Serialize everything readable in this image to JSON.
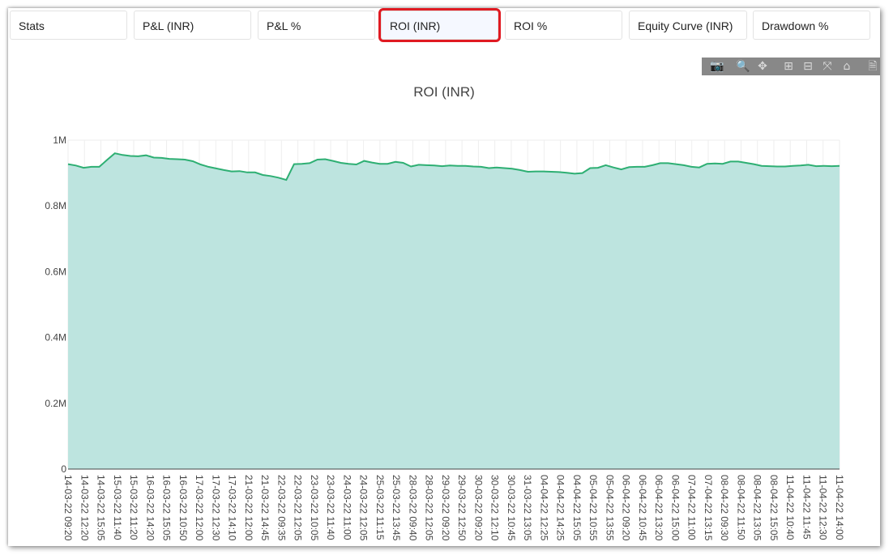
{
  "tabs": [
    {
      "label": "Stats",
      "active": false
    },
    {
      "label": "P&L (INR)",
      "active": false
    },
    {
      "label": "P&L %",
      "active": false
    },
    {
      "label": "ROI (INR)",
      "active": true
    },
    {
      "label": "ROI %",
      "active": false
    },
    {
      "label": "Equity Curve (INR)",
      "active": false
    },
    {
      "label": "Drawdown %",
      "active": false
    }
  ],
  "modebar": [
    {
      "icon": "camera-icon",
      "glyph": "📷"
    },
    {
      "icon": "zoom-icon",
      "glyph": "🔍"
    },
    {
      "icon": "pan-icon",
      "glyph": "✥"
    },
    {
      "icon": "zoom-in-icon",
      "glyph": "⊞"
    },
    {
      "icon": "zoom-out-icon",
      "glyph": "⊟"
    },
    {
      "icon": "autoscale-icon",
      "glyph": "⤧"
    },
    {
      "icon": "home-icon",
      "glyph": "⌂"
    },
    {
      "icon": "download-icon",
      "glyph": "🗎"
    }
  ],
  "chart_data": {
    "type": "area",
    "title": "ROI (INR)",
    "xlabel": "",
    "ylabel": "",
    "ylim": [
      0,
      1000000
    ],
    "yticks": [
      0,
      200000,
      400000,
      600000,
      800000,
      1000000
    ],
    "ytick_labels": [
      "0",
      "0.2M",
      "0.4M",
      "0.6M",
      "0.8M",
      "1M"
    ],
    "x_tick_labels": [
      "14-03-22 09:20",
      "14-03-22 12:20",
      "14-03-22 15:05",
      "15-03-22 11:40",
      "15-03-22 11:20",
      "16-03-22 14:20",
      "16-03-22 15:05",
      "16-03-22 10:50",
      "17-03-22 12:00",
      "17-03-22 12:30",
      "17-03-22 14:10",
      "21-03-22 12:00",
      "21-03-22 14:45",
      "22-03-22 09:35",
      "22-03-22 12:05",
      "23-03-22 10:05",
      "23-03-22 11:40",
      "24-03-22 11:00",
      "24-03-22 12:05",
      "25-03-22 11:15",
      "25-03-22 13:45",
      "28-03-22 09:40",
      "28-03-22 12:05",
      "29-03-22 09:20",
      "29-03-22 12:50",
      "30-03-22 09:20",
      "30-03-22 12:10",
      "30-03-22 10:45",
      "31-03-22 13:05",
      "04-04-22 12:25",
      "04-04-22 14:25",
      "04-04-22 15:05",
      "05-04-22 10:55",
      "05-04-22 13:55",
      "06-04-22 09:20",
      "06-04-22 10:45",
      "06-04-22 13:20",
      "06-04-22 15:00",
      "07-04-22 11:00",
      "07-04-22 13:15",
      "08-04-22 09:30",
      "08-04-22 11:50",
      "08-04-22 13:05",
      "08-04-22 15:05",
      "11-04-22 10:40",
      "11-04-22 11:45",
      "11-04-22 12:30",
      "11-04-22 14:00"
    ],
    "series": [
      {
        "values": [
          927000,
          923000,
          916000,
          919000,
          919000,
          940000,
          960000,
          955000,
          952000,
          951000,
          954000,
          947000,
          946000,
          943000,
          942000,
          941000,
          936000,
          926000,
          919000,
          914000,
          909000,
          905000,
          906000,
          902000,
          902000,
          894000,
          891000,
          886000,
          879000,
          927000,
          928000,
          930000,
          941000,
          942000,
          937000,
          931000,
          928000,
          926000,
          937000,
          932000,
          928000,
          928000,
          934000,
          931000,
          920000,
          925000,
          924000,
          923000,
          921000,
          923000,
          922000,
          922000,
          920000,
          919000,
          915000,
          917000,
          915000,
          913000,
          909000,
          904000,
          905000,
          905000,
          904000,
          903000,
          901000,
          898000,
          900000,
          915000,
          916000,
          924000,
          917000,
          911000,
          918000,
          919000,
          919000,
          924000,
          930000,
          930000,
          927000,
          924000,
          919000,
          917000,
          928000,
          929000,
          928000,
          935000,
          935000,
          931000,
          927000,
          922000,
          921000,
          920000,
          920000,
          922000,
          923000,
          925000,
          921000,
          922000,
          921000,
          922000
        ],
        "line_color": "#2eaf73",
        "fill_color": "#bde4df"
      }
    ]
  }
}
